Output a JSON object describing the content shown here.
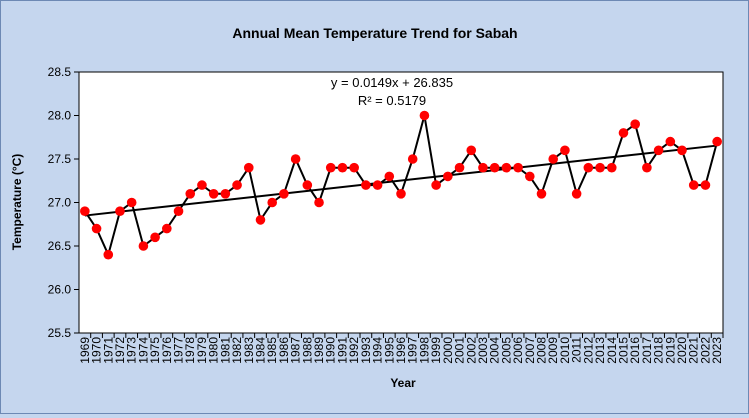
{
  "chart_data": {
    "type": "line",
    "title": "Annual Mean Temperature Trend for Sabah",
    "xlabel": "Year",
    "ylabel": "Temperature (°C)",
    "ylim": [
      25.5,
      28.5
    ],
    "yticks": [
      "25.5",
      "26.0",
      "26.5",
      "27.0",
      "27.5",
      "28.0",
      "28.5"
    ],
    "grid": false,
    "legend": "none",
    "annotation": {
      "equation": "y = 0.0149x + 26.835",
      "r2": "R² = 0.5179"
    },
    "trendline": {
      "slope": 0.0149,
      "intercept": 26.835
    },
    "x": [
      "1969",
      "1970",
      "1971",
      "1972",
      "1973",
      "1974",
      "1975",
      "1976",
      "1977",
      "1978",
      "1979",
      "1980",
      "1981",
      "1982",
      "1983",
      "1984",
      "1985",
      "1986",
      "1987",
      "1988",
      "1989",
      "1990",
      "1991",
      "1992",
      "1993",
      "1994",
      "1995",
      "1996",
      "1997",
      "1998",
      "1999",
      "2000",
      "2001",
      "2002",
      "2003",
      "2004",
      "2005",
      "2006",
      "2007",
      "2008",
      "2009",
      "2010",
      "2011",
      "2012",
      "2013",
      "2014",
      "2015",
      "2016",
      "2017",
      "2018",
      "2019",
      "2020",
      "2021",
      "2022",
      "2023"
    ],
    "series": [
      {
        "values": [
          26.9,
          26.7,
          26.4,
          26.9,
          27.0,
          26.5,
          26.6,
          26.7,
          26.9,
          27.1,
          27.2,
          27.1,
          27.1,
          27.2,
          27.4,
          26.8,
          27.0,
          27.1,
          27.5,
          27.2,
          27.0,
          27.4,
          27.4,
          27.4,
          27.2,
          27.2,
          27.3,
          27.1,
          27.5,
          28.0,
          27.2,
          27.3,
          27.4,
          27.6,
          27.4,
          27.4,
          27.4,
          27.4,
          27.3,
          27.1,
          27.5,
          27.6,
          27.1,
          27.4,
          27.4,
          27.4,
          27.8,
          27.9,
          27.4,
          27.6,
          27.7,
          27.6,
          27.2,
          27.2,
          27.7
        ],
        "line_color": "#000000",
        "marker_color": "#ff0000"
      }
    ]
  }
}
